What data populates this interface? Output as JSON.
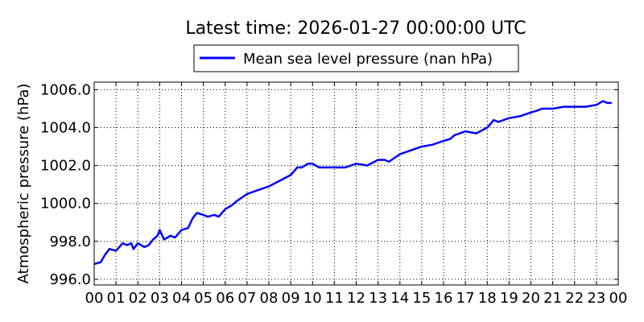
{
  "chart_data": {
    "type": "line",
    "title": "Latest time: 2026-01-27 00:00:00 UTC",
    "xlabel": "",
    "ylabel": "Atmospheric pressure (hPa)",
    "xlim": [
      0,
      24
    ],
    "ylim": [
      995.7,
      1006.4
    ],
    "grid": true,
    "legend_position": "top-center",
    "x_tick_labels": [
      "00",
      "01",
      "02",
      "03",
      "04",
      "05",
      "06",
      "07",
      "08",
      "09",
      "10",
      "11",
      "12",
      "13",
      "14",
      "15",
      "16",
      "17",
      "18",
      "19",
      "20",
      "21",
      "22",
      "23",
      "00"
    ],
    "y_ticks": [
      996.0,
      998.0,
      1000.0,
      1002.0,
      1004.0,
      1006.0
    ],
    "y_tick_labels": [
      "996.0",
      "998.0",
      "1000.0",
      "1002.0",
      "1004.0",
      "1006.0"
    ],
    "series": [
      {
        "name": "Mean sea level pressure (nan hPa)",
        "color": "#0000ff",
        "x": [
          0.0,
          0.3,
          0.5,
          0.7,
          1.0,
          1.3,
          1.5,
          1.7,
          1.8,
          2.0,
          2.3,
          2.5,
          2.7,
          2.9,
          3.0,
          3.2,
          3.5,
          3.7,
          4.0,
          4.3,
          4.5,
          4.7,
          5.0,
          5.2,
          5.5,
          5.7,
          6.0,
          6.3,
          6.5,
          7.0,
          7.5,
          8.0,
          8.5,
          9.0,
          9.3,
          9.5,
          9.8,
          10.0,
          10.3,
          10.5,
          11.0,
          11.5,
          12.0,
          12.5,
          13.0,
          13.3,
          13.5,
          14.0,
          14.5,
          15.0,
          15.5,
          16.0,
          16.3,
          16.5,
          17.0,
          17.5,
          18.0,
          18.3,
          18.5,
          19.0,
          19.5,
          20.0,
          20.3,
          20.5,
          21.0,
          21.5,
          22.0,
          22.5,
          23.0,
          23.3,
          23.5,
          23.7
        ],
        "y": [
          996.8,
          996.9,
          997.3,
          997.6,
          997.5,
          997.9,
          997.8,
          997.9,
          997.6,
          997.9,
          997.7,
          997.8,
          998.1,
          998.3,
          998.6,
          998.1,
          998.3,
          998.2,
          998.6,
          998.7,
          999.2,
          999.5,
          999.4,
          999.3,
          999.4,
          999.3,
          999.7,
          999.9,
          1000.1,
          1000.5,
          1000.7,
          1000.9,
          1001.2,
          1001.5,
          1001.9,
          1001.9,
          1002.1,
          1002.1,
          1001.9,
          1001.9,
          1001.9,
          1001.9,
          1002.1,
          1002.0,
          1002.3,
          1002.3,
          1002.2,
          1002.6,
          1002.8,
          1003.0,
          1003.1,
          1003.3,
          1003.4,
          1003.6,
          1003.8,
          1003.7,
          1004.0,
          1004.4,
          1004.3,
          1004.5,
          1004.6,
          1004.8,
          1004.9,
          1005.0,
          1005.0,
          1005.1,
          1005.1,
          1005.1,
          1005.2,
          1005.4,
          1005.3,
          1005.3
        ]
      }
    ]
  }
}
